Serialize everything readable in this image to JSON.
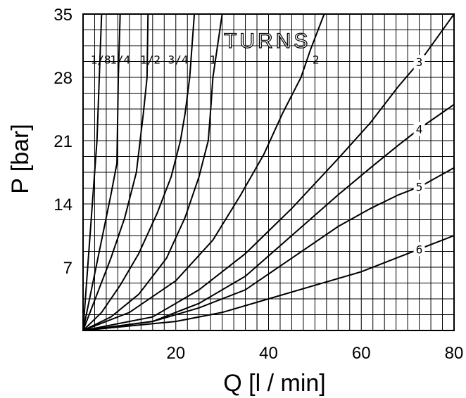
{
  "chart_data": {
    "type": "line",
    "xlabel": "Q [l / min]",
    "ylabel": "P [bar]",
    "xlim": [
      0,
      80
    ],
    "ylim": [
      0,
      35
    ],
    "xticks": [
      "20",
      "40",
      "60",
      "80"
    ],
    "yticks": [
      "7",
      "14",
      "21",
      "28",
      "35"
    ],
    "grid": true,
    "annotation": "TURNS",
    "series": [
      {
        "name": "1/8",
        "points": [
          [
            0,
            0
          ],
          [
            1,
            7
          ],
          [
            2,
            14
          ],
          [
            3,
            21
          ],
          [
            3.5,
            28
          ],
          [
            4,
            35
          ]
        ]
      },
      {
        "name": "1/4",
        "points": [
          [
            0,
            0
          ],
          [
            2,
            5
          ],
          [
            4,
            10
          ],
          [
            6,
            15
          ],
          [
            7.3,
            18.5
          ],
          [
            7.6,
            28
          ],
          [
            8,
            35
          ]
        ]
      },
      {
        "name": "1/2",
        "points": [
          [
            0,
            0
          ],
          [
            3,
            4
          ],
          [
            6,
            8
          ],
          [
            9,
            12.5
          ],
          [
            11.5,
            17.5
          ],
          [
            13,
            24
          ],
          [
            13.8,
            28
          ],
          [
            14,
            35
          ]
        ]
      },
      {
        "name": "3/4",
        "points": [
          [
            0,
            0
          ],
          [
            4,
            2
          ],
          [
            8,
            5
          ],
          [
            12,
            8.5
          ],
          [
            16,
            13
          ],
          [
            19,
            17
          ],
          [
            21,
            21
          ],
          [
            22,
            24
          ],
          [
            23,
            28
          ],
          [
            24,
            35
          ]
        ]
      },
      {
        "name": "1",
        "points": [
          [
            0,
            0
          ],
          [
            6,
            1.5
          ],
          [
            12,
            4
          ],
          [
            18,
            8
          ],
          [
            22,
            12.5
          ],
          [
            25,
            17
          ],
          [
            27,
            21
          ],
          [
            27.6,
            25
          ],
          [
            28,
            28
          ],
          [
            30,
            35
          ]
        ]
      },
      {
        "name": "2",
        "points": [
          [
            0,
            0
          ],
          [
            10,
            2
          ],
          [
            20,
            5.5
          ],
          [
            28,
            10
          ],
          [
            34,
            15
          ],
          [
            39,
            19.5
          ],
          [
            43,
            24
          ],
          [
            47,
            28
          ],
          [
            49,
            31
          ],
          [
            52,
            35
          ]
        ]
      },
      {
        "name": "3",
        "points": [
          [
            0,
            0
          ],
          [
            15,
            1.5
          ],
          [
            25,
            4.5
          ],
          [
            35,
            8.5
          ],
          [
            45,
            13.5
          ],
          [
            55,
            19
          ],
          [
            62,
            23
          ],
          [
            68,
            27
          ],
          [
            73,
            30
          ],
          [
            80,
            35
          ]
        ]
      },
      {
        "name": "4",
        "points": [
          [
            0,
            0
          ],
          [
            15,
            1
          ],
          [
            25,
            3
          ],
          [
            35,
            6
          ],
          [
            45,
            10.5
          ],
          [
            55,
            15
          ],
          [
            62,
            18
          ],
          [
            68,
            20.5
          ],
          [
            73,
            22.5
          ],
          [
            80,
            25
          ]
        ]
      },
      {
        "name": "5",
        "points": [
          [
            0,
            0
          ],
          [
            15,
            1
          ],
          [
            25,
            2.5
          ],
          [
            35,
            4.5
          ],
          [
            45,
            8
          ],
          [
            55,
            11.5
          ],
          [
            62,
            13.5
          ],
          [
            68,
            15
          ],
          [
            73,
            16
          ],
          [
            80,
            18
          ]
        ]
      },
      {
        "name": "6",
        "points": [
          [
            0,
            0
          ],
          [
            20,
            1
          ],
          [
            30,
            2
          ],
          [
            40,
            3.5
          ],
          [
            50,
            5
          ],
          [
            60,
            6.5
          ],
          [
            70,
            8.5
          ],
          [
            75,
            9.5
          ],
          [
            80,
            10.5
          ]
        ]
      }
    ]
  }
}
